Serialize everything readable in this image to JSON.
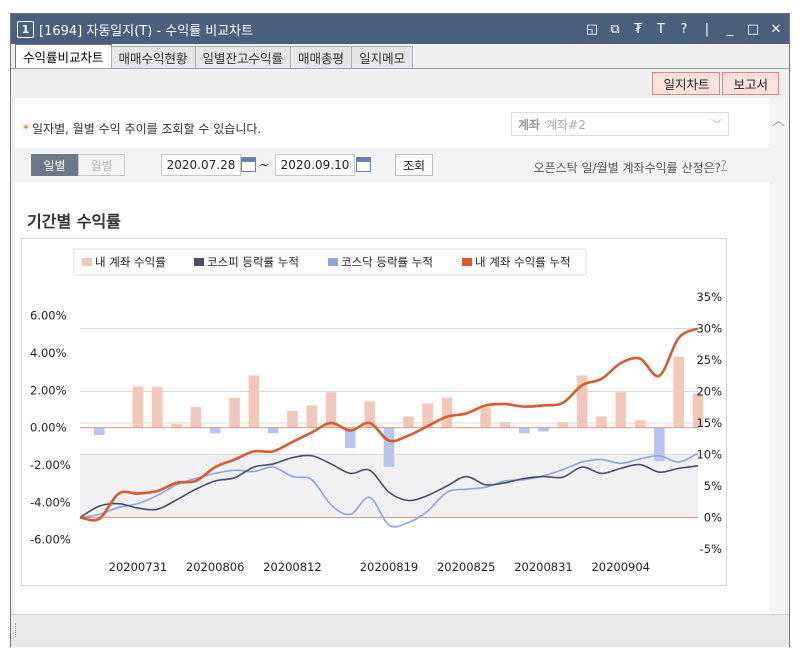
{
  "window": {
    "badge": "1",
    "title": "[1694] 자동일지(T) - 수익률 비교차트",
    "controls": [
      "◱",
      "⧉",
      "₮",
      "T",
      "?",
      "|",
      "_",
      "□",
      "✕"
    ]
  },
  "tabs": [
    "수익률비교차트",
    "매매수익현황",
    "일별잔고수익률",
    "매매총평",
    "일지메모"
  ],
  "top_buttons": [
    "일지차트",
    "보고서"
  ],
  "notice": "일자별, 월별 수익 추이를 조회할 수 있습니다.",
  "account": {
    "label": "계좌",
    "value": "계좌#2"
  },
  "period": {
    "daily": "일별",
    "monthly": "월별"
  },
  "date_from": "2020.07.28",
  "date_to": "2020.09.10",
  "tilde": "~",
  "search_label": "조회",
  "help_text": "오픈스탁 일/월별 계좌수익률 산정은?",
  "help_q": "?",
  "section_title": "기간별 수익률",
  "colors": {
    "bar": "#f4c8b8",
    "kospi": "#4a4e6e",
    "kosdaq": "#8ea4e0",
    "cum": "#d95a2b"
  },
  "chart_data": {
    "type": "bar",
    "legend": [
      "내 계좌 수익률",
      "코스피 등락률 누적",
      "코스닥 등락률 누적",
      "내 계좌 수익률 누적"
    ],
    "x_tick_labels": [
      "20200731",
      "20200806",
      "20200812",
      "20200819",
      "20200825",
      "20200831",
      "20200904"
    ],
    "x_tick_index": [
      3,
      7,
      11,
      16,
      20,
      24,
      28
    ],
    "left_axis": {
      "ticks": [
        "6.00%",
        "4.00%",
        "2.00%",
        "0.00%",
        "-2.00%",
        "-4.00%",
        "-6.00%"
      ],
      "range": [
        -6.5,
        7
      ]
    },
    "right_axis": {
      "ticks": [
        "35%",
        "30%",
        "25%",
        "20%",
        "15%",
        "10%",
        "5%",
        "0%",
        "-5%"
      ],
      "range": [
        -5,
        35
      ]
    },
    "series": [
      {
        "name": "내 계좌 수익률",
        "kind": "bar",
        "axis": "left",
        "values": [
          0,
          -0.4,
          0,
          2.2,
          2.2,
          0.2,
          1.1,
          -0.3,
          1.6,
          2.8,
          -0.3,
          0.9,
          1.2,
          1.9,
          -1.1,
          1.4,
          -2.1,
          0.6,
          1.3,
          1.6,
          0,
          1.1,
          0.3,
          -0.3,
          -0.2,
          0.3,
          2.8,
          0.6,
          1.9,
          0.4,
          -1.8,
          3.8,
          1.8
        ]
      },
      {
        "name": "코스피 등락률 누적",
        "kind": "line",
        "axis": "right",
        "values": [
          0,
          1.8,
          2.2,
          1.5,
          1.3,
          2.8,
          4.5,
          5.8,
          6.3,
          8,
          8.5,
          9.5,
          9.8,
          8.5,
          7,
          7.5,
          4,
          2.7,
          3.5,
          5,
          6.5,
          5.2,
          5.5,
          6.2,
          6.5,
          6.4,
          8,
          7,
          7.8,
          8.4,
          7.2,
          7.8,
          8.2
        ]
      },
      {
        "name": "코스닥 등락률 누적",
        "kind": "line",
        "axis": "right",
        "values": [
          0,
          0.5,
          1.6,
          2.2,
          3.5,
          5.2,
          6.2,
          7,
          7.5,
          7.3,
          8,
          6.5,
          6,
          2,
          0.5,
          3.2,
          -1.2,
          -0.8,
          1,
          4,
          4.5,
          4.8,
          5.8,
          6,
          6.6,
          7.6,
          8.8,
          9.2,
          8.6,
          9.3,
          9.8,
          8.8,
          10.2
        ]
      },
      {
        "name": "내 계좌 수익률 누적",
        "kind": "line",
        "axis": "right",
        "values": [
          0,
          -0.2,
          3.8,
          3.8,
          4.2,
          5.5,
          5.8,
          8,
          9.2,
          10.5,
          10.5,
          12,
          13.5,
          15,
          13.8,
          15,
          12.2,
          13,
          14.5,
          16,
          16.5,
          17.8,
          18,
          17.6,
          17.8,
          18.2,
          21,
          22,
          24.5,
          25.2,
          22.5,
          28.5,
          30
        ]
      }
    ]
  }
}
